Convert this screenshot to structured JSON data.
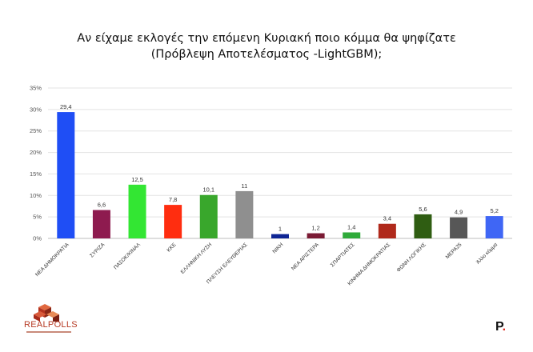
{
  "chart_data": {
    "type": "bar",
    "title": "Αν είχαμε εκλογές την επόμενη Κυριακή ποιο κόμμα θα ψηφίζατε",
    "subtitle": "(Πρόβλεψη Αποτελέσματος -LightGBM);",
    "categories": [
      "ΝΕΑ ΔΗΜΟΚΡΑΤΙΑ",
      "ΣΥΡΙΖΑ",
      "ΠΑΣΟΚ/ΚΙΝΑΛ",
      "ΚΚΕ",
      "ΕΛΛΗΝΙΚΗ ΛΥΣΗ",
      "ΠΛΕΥΣΗ ΕΛΕΥΘΕΡΙΑΣ",
      "ΝΙΚΗ",
      "ΝΕΑ ΑΡΙΣΤΕΡΑ",
      "ΣΠΑΡΤΙΑΤΕΣ",
      "ΚΙΝΗΜΑ ΔΗΜΟΚΡΑΤΙΑΣ",
      "ΦΩΝΗ ΛΟΓΙΚΗΣ",
      "ΜΕΡΑ25",
      "Άλλο κόμμα"
    ],
    "values": [
      29.4,
      6.6,
      12.5,
      7.8,
      10.1,
      11,
      1,
      1.2,
      1.4,
      3.4,
      5.6,
      4.9,
      5.2
    ],
    "data_labels": [
      "29,4",
      "6,6",
      "12,5",
      "7,8",
      "10,1",
      "11",
      "1",
      "1,2",
      "1,4",
      "3,4",
      "5,6",
      "4,9",
      "5,2"
    ],
    "colors": [
      "#1f4ef5",
      "#8e1b4f",
      "#33e633",
      "#ff2d0f",
      "#39a72c",
      "#8f8f8f",
      "#0e2594",
      "#7a1a34",
      "#2faa3a",
      "#b0291b",
      "#2f5d12",
      "#575757",
      "#3f66f5"
    ],
    "ylim": [
      0,
      35
    ],
    "yticks": [
      "0%",
      "5%",
      "10%",
      "15%",
      "20%",
      "25%",
      "30%",
      "35%"
    ],
    "ytick_values": [
      0,
      5,
      10,
      15,
      20,
      25,
      30,
      35
    ],
    "grid": true,
    "xlabel": "",
    "ylabel": ""
  },
  "branding": {
    "logo_text": "REALPOLLS",
    "mark": "P",
    "mark_dot": "."
  }
}
